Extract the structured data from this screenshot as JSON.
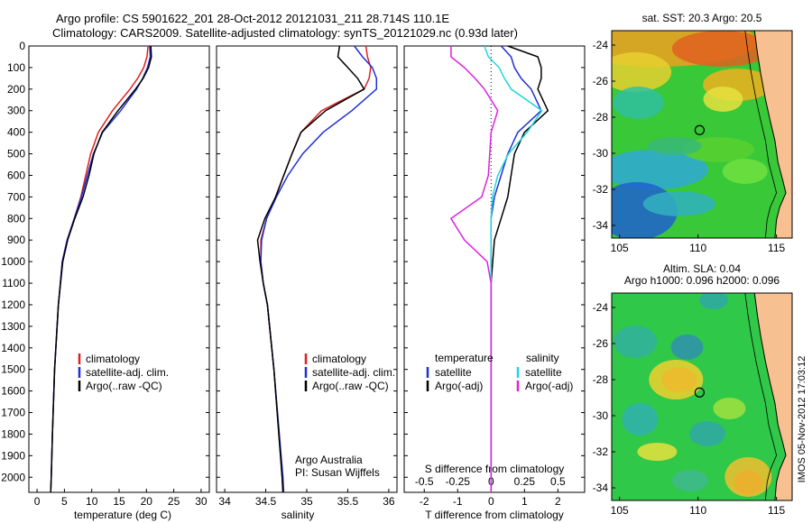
{
  "header": {
    "title_line1": "Argo profile: CS 5901622_201 28-Oct-2012 20121031_211 28.714S 110.1E",
    "title_line2": "Climatology: CARS2009. Satellite-adjusted climatology: synTS_20121029.nc (0.93d later)"
  },
  "colors": {
    "climatology": "#e02020",
    "satellite": "#1f2fd8",
    "argo": "#000000",
    "satellite_s": "#20d8d8",
    "argo_s": "#e020e0",
    "land": "#f7c090"
  },
  "chart_data": [
    {
      "type": "line",
      "panel": "temperature",
      "xlabel": "temperature (deg C)",
      "xticks": [
        0,
        5,
        10,
        15,
        20,
        25,
        30
      ],
      "xlim": [
        -1.5,
        31.5
      ],
      "yticks": [
        0,
        100,
        200,
        300,
        400,
        500,
        600,
        700,
        800,
        900,
        1000,
        1100,
        1200,
        1300,
        1400,
        1500,
        1600,
        1700,
        1800,
        1900,
        2000
      ],
      "ylim": [
        2070,
        0
      ],
      "y": [
        0,
        50,
        100,
        150,
        200,
        300,
        400,
        500,
        600,
        700,
        800,
        900,
        1000,
        1200,
        1500,
        1800,
        2000,
        2070
      ],
      "series": [
        {
          "name": "climatology",
          "color": "#e02020",
          "values": [
            20.3,
            20.1,
            19.5,
            18.4,
            17.0,
            13.8,
            11.2,
            9.8,
            8.9,
            8.0,
            6.8,
            5.5,
            4.6,
            3.9,
            3.2,
            2.8,
            2.6,
            2.5
          ]
        },
        {
          "name": "satellite-adj. clim.",
          "color": "#1f2fd8",
          "values": [
            20.6,
            20.7,
            20.2,
            19.3,
            18.2,
            15.3,
            12.0,
            10.3,
            9.2,
            8.1,
            6.8,
            5.5,
            4.6,
            3.9,
            3.2,
            2.8,
            2.6,
            2.5
          ]
        },
        {
          "name": "Argo(..raw -QC)",
          "color": "#000000",
          "values": [
            20.8,
            20.9,
            20.4,
            19.4,
            18.0,
            14.8,
            11.9,
            10.4,
            9.5,
            8.4,
            6.9,
            5.6,
            4.7,
            3.9,
            3.2,
            2.8,
            2.6,
            2.5
          ]
        }
      ],
      "legend": [
        "climatology",
        "satellite-adj. clim.",
        "Argo(..raw -QC)"
      ]
    },
    {
      "type": "line",
      "panel": "salinity",
      "xlabel": "salinity",
      "xticks": [
        34,
        34.5,
        35,
        35.5,
        36
      ],
      "xlim": [
        33.9,
        36.1
      ],
      "ylim": [
        2070,
        0
      ],
      "y": [
        0,
        50,
        100,
        150,
        200,
        300,
        400,
        500,
        600,
        700,
        800,
        900,
        1000,
        1100,
        1200,
        1500,
        2000,
        2070
      ],
      "series": [
        {
          "name": "climatology",
          "color": "#e02020",
          "values": [
            35.72,
            35.74,
            35.78,
            35.76,
            35.7,
            35.18,
            34.93,
            34.82,
            34.72,
            34.62,
            34.51,
            34.44,
            34.44,
            34.47,
            34.52,
            34.6,
            34.7,
            34.71
          ]
        },
        {
          "name": "satellite-adj. clim.",
          "color": "#1f2fd8",
          "values": [
            35.58,
            35.68,
            35.8,
            35.85,
            35.85,
            35.55,
            35.2,
            34.95,
            34.77,
            34.63,
            34.51,
            34.45,
            34.44,
            34.47,
            34.52,
            34.6,
            34.71,
            34.72
          ]
        },
        {
          "name": "Argo(..raw -QC)",
          "color": "#000000",
          "values": [
            35.4,
            35.38,
            35.5,
            35.62,
            35.7,
            35.23,
            34.93,
            34.82,
            34.72,
            34.62,
            34.49,
            34.4,
            34.43,
            34.47,
            34.52,
            34.6,
            34.7,
            34.71
          ]
        }
      ],
      "legend": [
        "climatology",
        "satellite-adj. clim.",
        "Argo(..raw -QC)"
      ],
      "annotation": [
        "Argo Australia",
        "PI: Susan Wijffels"
      ]
    },
    {
      "type": "line",
      "panel": "difference",
      "xlabel_top": "S difference from climatology",
      "xticks_top": [
        "-0.5",
        "-0.25",
        "0",
        "0.25",
        "0.5"
      ],
      "xlabel": "T difference from climatology",
      "xticks": [
        "-2",
        "-1",
        "0",
        "1",
        "2"
      ],
      "xlim_T": [
        -2.6,
        2.8
      ],
      "xlim_S": [
        -0.65,
        0.7
      ],
      "ylim": [
        2070,
        0
      ],
      "y": [
        0,
        50,
        100,
        150,
        200,
        300,
        400,
        500,
        600,
        700,
        800,
        900,
        1000,
        1100,
        1200,
        1400,
        1600,
        1800,
        2000,
        2070
      ],
      "series": [
        {
          "name": "temperature satellite",
          "color": "#1f2fd8",
          "values": [
            0.3,
            0.6,
            0.7,
            0.9,
            1.2,
            1.5,
            0.8,
            0.5,
            0.3,
            0.1,
            0.0,
            0.0,
            0.0,
            0.0,
            0.0,
            0.0,
            0.0,
            0.0,
            0.0,
            0.0
          ]
        },
        {
          "name": "temperature Argo(-adj)",
          "color": "#000000",
          "values": [
            0.5,
            1.4,
            1.5,
            1.5,
            1.4,
            1.7,
            1.0,
            0.7,
            0.6,
            0.5,
            0.3,
            0.1,
            0.05,
            0.0,
            0.0,
            0.0,
            0.0,
            0.0,
            0.0,
            0.0
          ]
        },
        {
          "name": "salinity satellite",
          "color": "#20d8d8",
          "values": [
            -0.05,
            -0.02,
            0.06,
            0.1,
            0.15,
            0.38,
            0.27,
            0.13,
            0.05,
            0.01,
            0.0,
            0.0,
            0.0,
            0.0,
            0.0,
            0.0,
            0.0,
            0.0,
            0.0,
            0.0
          ]
        },
        {
          "name": "salinity Argo(-adj)",
          "color": "#e020e0",
          "values": [
            -0.3,
            -0.3,
            -0.2,
            -0.12,
            -0.05,
            0.05,
            0.0,
            -0.01,
            -0.02,
            -0.07,
            -0.3,
            -0.2,
            -0.03,
            0.0,
            0.0,
            0.0,
            0.0,
            0.0,
            0.0,
            0.0
          ]
        }
      ],
      "legend_temperature": "temperature",
      "legend_salinity": "salinity",
      "legend_labels": [
        "satellite",
        "Argo(-adj)"
      ]
    },
    {
      "type": "heatmap",
      "panel": "sst-map",
      "title": "sat. SST: 20.3  Argo: 20.5",
      "xticks": [
        105,
        110,
        115
      ],
      "yticks": [
        -24,
        -26,
        -28,
        -30,
        -32,
        -34
      ],
      "xlim": [
        104.5,
        116
      ],
      "ylim": [
        -34.7,
        -23.2
      ],
      "marker": {
        "lon": 110.1,
        "lat": -28.714
      }
    },
    {
      "type": "heatmap",
      "panel": "sla-map",
      "title_line1": "Altim. SLA: 0.04",
      "title_line2": "Argo h1000: 0.096 h2000: 0.096",
      "xticks": [
        105,
        110,
        115
      ],
      "yticks": [
        -24,
        -26,
        -28,
        -30,
        -32,
        -34
      ],
      "xlim": [
        104.5,
        116
      ],
      "ylim": [
        -34.7,
        -23.2
      ],
      "marker": {
        "lon": 110.1,
        "lat": -28.714
      }
    }
  ],
  "side_label": "IMOS 05-Nov-2012 17:03:12"
}
